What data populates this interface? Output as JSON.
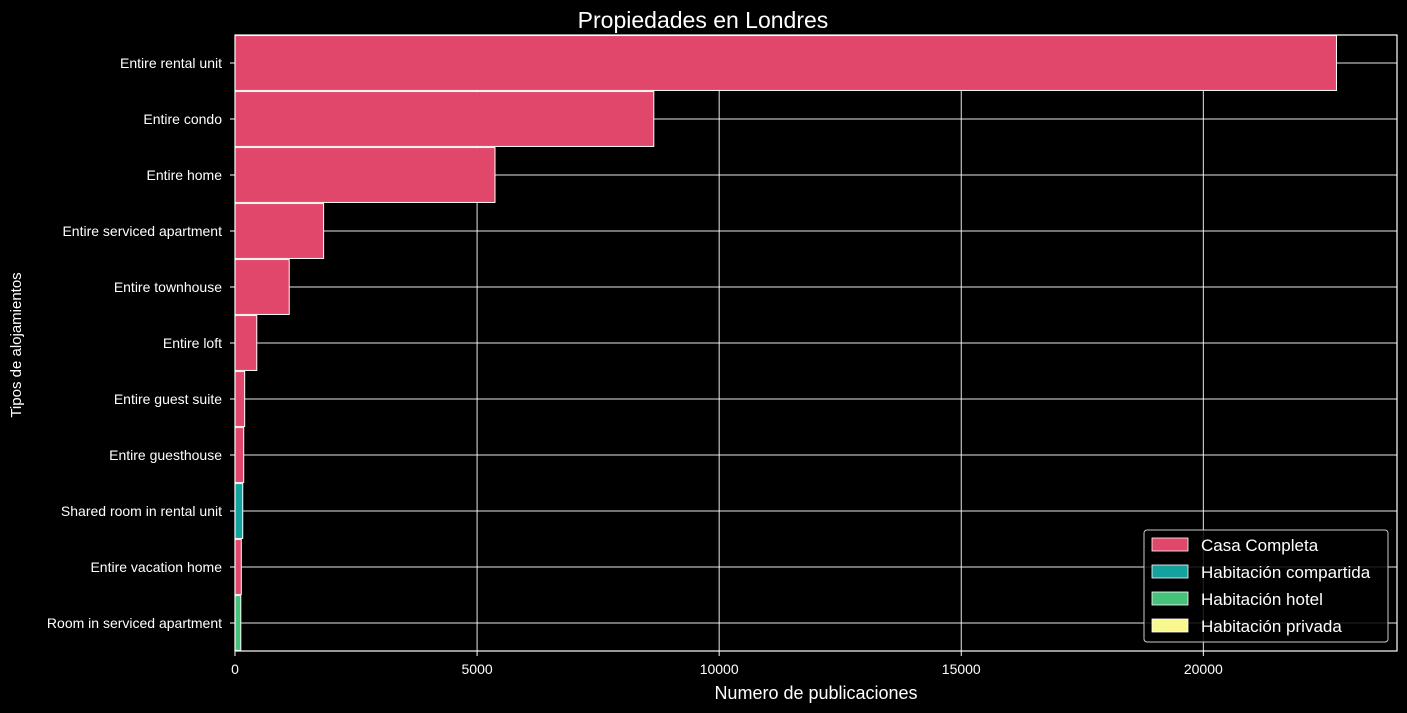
{
  "chart_data": {
    "type": "bar",
    "orientation": "horizontal",
    "title": "Propiedades en Londres",
    "xlabel": "Numero de publicaciones",
    "ylabel": "Tipos de alojamientos",
    "xlim": [
      0,
      24000
    ],
    "xticks": [
      0,
      5000,
      10000,
      15000,
      20000
    ],
    "grid": true,
    "legend_position": "bottom-right",
    "categories": [
      "Entire rental unit",
      "Entire condo",
      "Entire home",
      "Entire serviced apartment",
      "Entire townhouse",
      "Entire loft",
      "Entire guest suite",
      "Entire guesthouse",
      "Shared room in rental unit",
      "Entire vacation home",
      "Room in serviced apartment"
    ],
    "values": [
      22750,
      8650,
      5370,
      1830,
      1120,
      450,
      200,
      180,
      160,
      130,
      120
    ],
    "value_groups": [
      "Casa Completa",
      "Casa Completa",
      "Casa Completa",
      "Casa Completa",
      "Casa Completa",
      "Casa Completa",
      "Casa Completa",
      "Casa Completa",
      "Habitación compartida",
      "Casa Completa",
      "Habitación hotel"
    ],
    "legend": [
      {
        "label": "Casa Completa",
        "color": "#e0476a"
      },
      {
        "label": "Habitación compartida",
        "color": "#14a29e"
      },
      {
        "label": "Habitación hotel",
        "color": "#47c27a"
      },
      {
        "label": "Habitación privada",
        "color": "#f8f88e"
      }
    ]
  }
}
